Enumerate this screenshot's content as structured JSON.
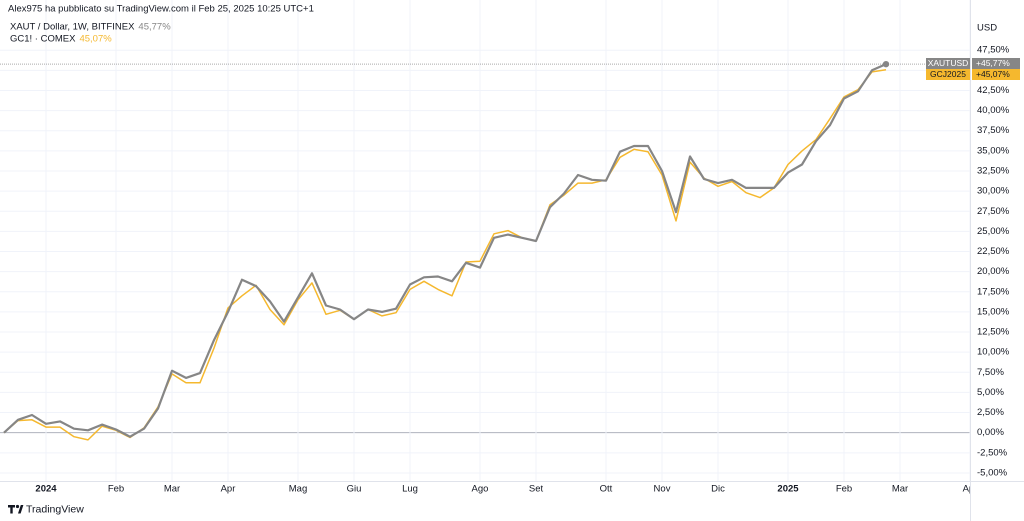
{
  "chart_data": {
    "type": "line",
    "title": "Alex975 ha pubblicato su TradingView.com il Feb 25, 2025 10:25 UTC+1",
    "y_axis_label": "USD",
    "brand": "TradingView",
    "categories": [
      null,
      null,
      null,
      "2024",
      null,
      null,
      null,
      null,
      "Feb",
      null,
      null,
      null,
      "Mar",
      null,
      null,
      null,
      "Apr",
      null,
      null,
      null,
      null,
      "Mag",
      null,
      null,
      null,
      "Giu",
      null,
      null,
      null,
      "Lug",
      null,
      null,
      null,
      null,
      "Ago",
      null,
      null,
      null,
      "Set",
      null,
      null,
      null,
      null,
      "Ott",
      null,
      null,
      null,
      "Nov",
      null,
      null,
      null,
      "Dic",
      null,
      null,
      null,
      null,
      "2025",
      null,
      null,
      null,
      "Feb",
      null,
      null,
      null,
      "Mar",
      null,
      null,
      null,
      null,
      "Apr"
    ],
    "series": [
      {
        "name": "GC1! · COMEX",
        "symbol": "GCJ2025",
        "color": "#f5b82e",
        "legend_value": "45,07%",
        "scale_label": "+45,07%",
        "values": [
          0,
          1.5,
          1.6,
          0.7,
          0.7,
          -0.5,
          -0.9,
          0.8,
          0.3,
          -0.6,
          0.6,
          3.2,
          7.3,
          6.2,
          6.2,
          10.5,
          15.5,
          17.0,
          18.3,
          15.3,
          13.4,
          16.5,
          18.6,
          14.7,
          15.2,
          14.1,
          15.3,
          14.5,
          14.9,
          17.8,
          18.8,
          17.8,
          17.0,
          21.2,
          21.3,
          24.7,
          25.1,
          24.2,
          23.8,
          28.3,
          29.5,
          31.0,
          31.0,
          31.4,
          34.2,
          35.2,
          34.9,
          32.0,
          26.3,
          33.6,
          31.6,
          30.6,
          31.2,
          29.8,
          29.2,
          30.4,
          33.3,
          35.0,
          36.4,
          39.0,
          41.7,
          42.6,
          44.8,
          45.07,
          null,
          null,
          null,
          null,
          null,
          null
        ]
      },
      {
        "name": "XAUT / Dollar, 1W, BITFINEX",
        "symbol": "XAUTUSD",
        "color": "#868686",
        "legend_value": "45,77%",
        "scale_label": "+45,77%",
        "values": [
          0,
          1.6,
          2.2,
          1.1,
          1.4,
          0.5,
          0.3,
          1.0,
          0.4,
          -0.5,
          0.5,
          3.0,
          7.7,
          6.8,
          7.4,
          11.5,
          15.0,
          19.0,
          18.2,
          16.3,
          13.8,
          16.8,
          19.8,
          15.8,
          15.3,
          14.1,
          15.3,
          15.0,
          15.4,
          18.4,
          19.3,
          19.4,
          18.8,
          21.1,
          20.5,
          24.2,
          24.6,
          24.2,
          23.8,
          28.0,
          29.7,
          32.0,
          31.4,
          31.3,
          34.9,
          35.6,
          35.6,
          32.5,
          27.4,
          34.3,
          31.5,
          31.0,
          31.4,
          30.4,
          30.4,
          30.4,
          32.3,
          33.3,
          36.2,
          38.2,
          41.5,
          42.4,
          45.0,
          45.77,
          null,
          null,
          null,
          null,
          null,
          null
        ]
      }
    ],
    "ylim": [
      -6,
      51.5
    ],
    "yticks": [
      {
        "value": -5,
        "label": "-5,00%"
      },
      {
        "value": -2.5,
        "label": "-2,50%"
      },
      {
        "value": 0,
        "label": "0,00%"
      },
      {
        "value": 2.5,
        "label": "2,50%"
      },
      {
        "value": 5,
        "label": "5,00%"
      },
      {
        "value": 7.5,
        "label": "7,50%"
      },
      {
        "value": 10,
        "label": "10,00%"
      },
      {
        "value": 12.5,
        "label": "12,50%"
      },
      {
        "value": 15,
        "label": "15,00%"
      },
      {
        "value": 17.5,
        "label": "17,50%"
      },
      {
        "value": 20,
        "label": "20,00%"
      },
      {
        "value": 22.5,
        "label": "22,50%"
      },
      {
        "value": 25,
        "label": "25,00%"
      },
      {
        "value": 27.5,
        "label": "27,50%"
      },
      {
        "value": 30,
        "label": "30,00%"
      },
      {
        "value": 32.5,
        "label": "32,50%"
      },
      {
        "value": 35,
        "label": "35,00%"
      },
      {
        "value": 37.5,
        "label": "37,50%"
      },
      {
        "value": 40,
        "label": "40,00%"
      },
      {
        "value": 42.5,
        "label": "42,50%"
      },
      {
        "value": 45,
        "label": "45,00%"
      },
      {
        "value": 47.5,
        "label": "47,50%"
      }
    ],
    "grid": true
  }
}
